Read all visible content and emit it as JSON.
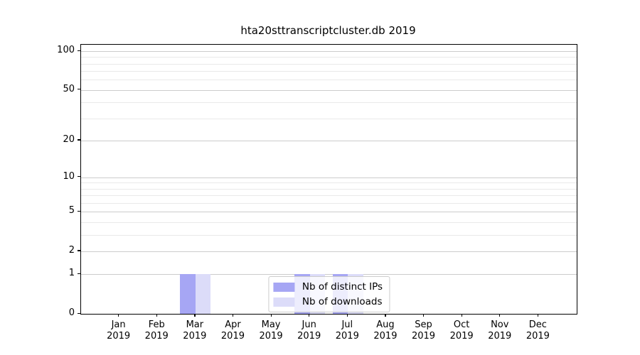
{
  "page": {
    "title": "hta20sttranscriptcluster.db 2019"
  },
  "chart_data": {
    "type": "bar",
    "title": "hta20sttranscriptcluster.db 2019",
    "x_tick_labels": [
      {
        "month": "Jan",
        "year": "2019"
      },
      {
        "month": "Feb",
        "year": "2019"
      },
      {
        "month": "Mar",
        "year": "2019"
      },
      {
        "month": "Apr",
        "year": "2019"
      },
      {
        "month": "May",
        "year": "2019"
      },
      {
        "month": "Jun",
        "year": "2019"
      },
      {
        "month": "Jul",
        "year": "2019"
      },
      {
        "month": "Aug",
        "year": "2019"
      },
      {
        "month": "Sep",
        "year": "2019"
      },
      {
        "month": "Oct",
        "year": "2019"
      },
      {
        "month": "Nov",
        "year": "2019"
      },
      {
        "month": "Dec",
        "year": "2019"
      }
    ],
    "series": [
      {
        "name": "Nb of distinct IPs",
        "color": "#a6a6f4",
        "values": [
          0,
          0,
          1,
          0,
          0,
          1,
          1,
          0,
          0,
          0,
          0,
          0
        ]
      },
      {
        "name": "Nb of downloads",
        "color": "#dcdcf9",
        "values": [
          0,
          0,
          1,
          0,
          0,
          1,
          1,
          0,
          0,
          0,
          0,
          0
        ]
      }
    ],
    "y_major_ticks": [
      0,
      1,
      2,
      5,
      10,
      20,
      50,
      100
    ],
    "y_minor_gridlines": [
      3,
      4,
      6,
      7,
      8,
      9,
      30,
      40,
      60,
      70,
      80,
      90
    ],
    "y_scale": "log(value+1)",
    "y_axis_max": 112,
    "ylim": [
      0,
      112
    ],
    "grid": "horizontal",
    "legend_position": "lower center",
    "colors": {
      "major_grid": "#cccccc",
      "minor_grid": "#e9e9e9",
      "axis": "#000000",
      "background": "#ffffff"
    }
  }
}
